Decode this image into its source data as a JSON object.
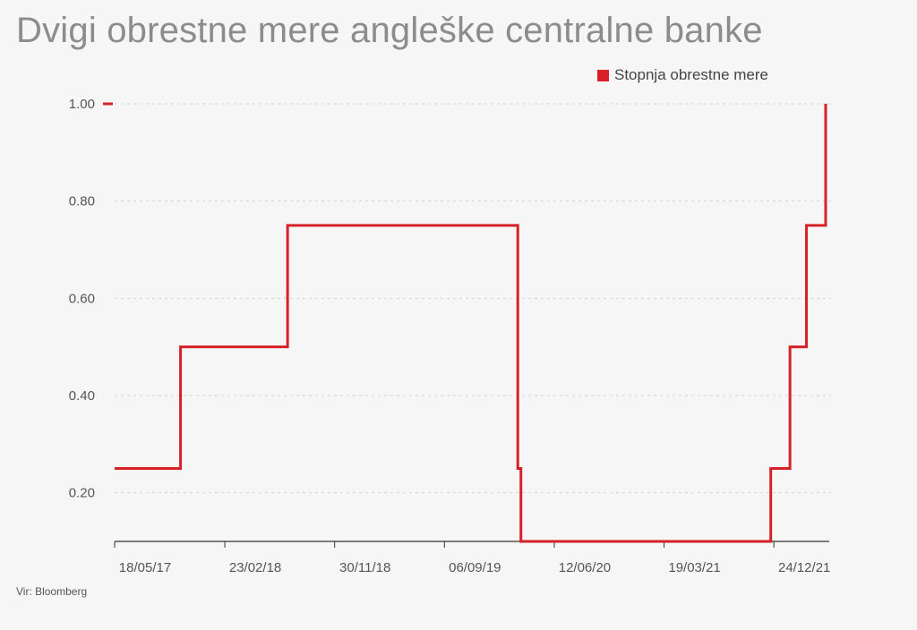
{
  "title": "Dvigi obrestne mere angleške centralne banke",
  "source": "Vir: Bloomberg",
  "chart_data": {
    "type": "line",
    "title": "Dvigi obrestne mere angleške centralne banke",
    "xlabel": "",
    "ylabel": "",
    "legend": [
      "Stopnja obrestne mere"
    ],
    "legend_position": "top-right",
    "y_ticks": [
      "1.00",
      "0.80",
      "0.60",
      "0.40",
      "0.20"
    ],
    "y_tick_values": [
      1.0,
      0.8,
      0.6,
      0.4,
      0.2
    ],
    "x_ticks": [
      "18/05/17",
      "23/02/18",
      "30/11/18",
      "06/09/19",
      "12/06/20",
      "19/03/21",
      "24/12/21"
    ],
    "x_tick_dates": [
      "2017-05-18",
      "2018-02-23",
      "2018-11-30",
      "2019-09-06",
      "2020-06-12",
      "2021-03-19",
      "2021-12-24"
    ],
    "ylim": [
      0.1,
      1.0
    ],
    "xlim": [
      "2017-05-18",
      "2022-05-05"
    ],
    "grid": "horizontal dashed",
    "color": "#d72027",
    "series": [
      {
        "name": "Stopnja obrestne mere",
        "step": true,
        "points": [
          {
            "date": "2017-05-18",
            "rate": 0.25
          },
          {
            "date": "2017-11-02",
            "rate": 0.5
          },
          {
            "date": "2018-08-02",
            "rate": 0.75
          },
          {
            "date": "2020-03-11",
            "rate": 0.25
          },
          {
            "date": "2020-03-19",
            "rate": 0.1
          },
          {
            "date": "2021-12-16",
            "rate": 0.25
          },
          {
            "date": "2022-02-03",
            "rate": 0.5
          },
          {
            "date": "2022-03-17",
            "rate": 0.75
          },
          {
            "date": "2022-05-05",
            "rate": 1.0
          }
        ]
      }
    ]
  }
}
